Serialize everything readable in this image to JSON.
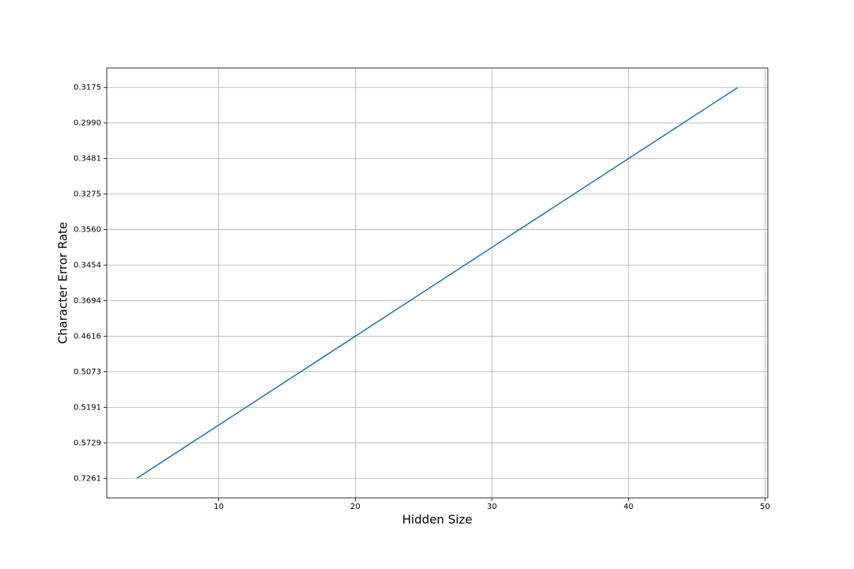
{
  "chart_data": {
    "type": "line",
    "xlabel": "Hidden Size",
    "ylabel": "Character Error Rate",
    "x": [
      4,
      8,
      12,
      16,
      20,
      24,
      28,
      32,
      36,
      40,
      44,
      48
    ],
    "series": [
      {
        "color": "#1f77b4",
        "values": [
          0.7261,
          0.5729,
          0.5191,
          0.5073,
          0.4616,
          0.3694,
          0.3454,
          0.356,
          0.3275,
          0.3481,
          0.299,
          0.3175
        ]
      }
    ],
    "xlim": [
      1.8,
      50.2
    ],
    "xticks": [
      10,
      20,
      30,
      40,
      50
    ],
    "yscale": "category",
    "yticks": [
      0.7261,
      0.5729,
      0.5191,
      0.5073,
      0.4616,
      0.3694,
      0.3454,
      {
        "value": 0.356,
        "label": "0.3560"
      },
      0.3275,
      0.3481,
      {
        "value": 0.299,
        "label": "0.2990"
      },
      0.3175
    ],
    "grid": true
  }
}
